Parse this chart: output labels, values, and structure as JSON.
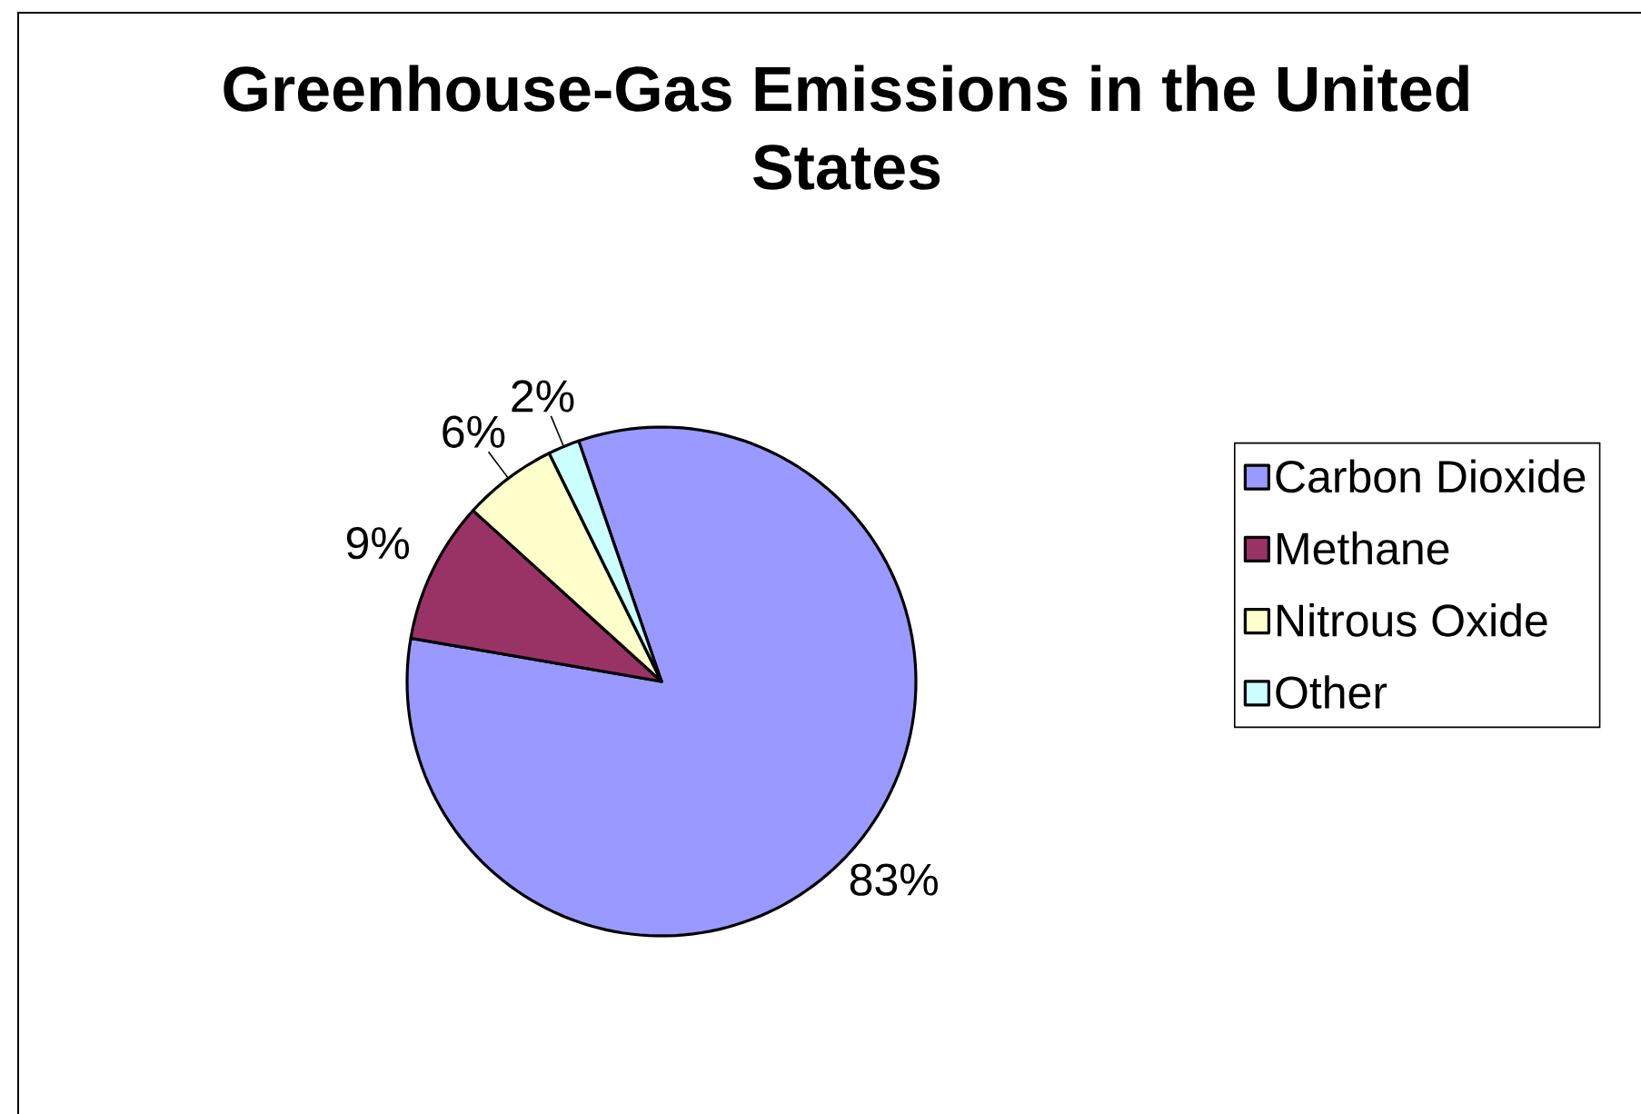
{
  "chart_data": {
    "type": "pie",
    "title": "Greenhouse-Gas Emissions in the United States",
    "categories": [
      "Carbon Dioxide",
      "Methane",
      "Nitrous Oxide",
      "Other"
    ],
    "values": [
      83,
      9,
      6,
      2
    ],
    "colors": [
      "#9999ff",
      "#993366",
      "#ffffcc",
      "#ccffff"
    ],
    "value_labels": [
      "83%",
      "9%",
      "6%",
      "2%"
    ],
    "legend": "right"
  }
}
